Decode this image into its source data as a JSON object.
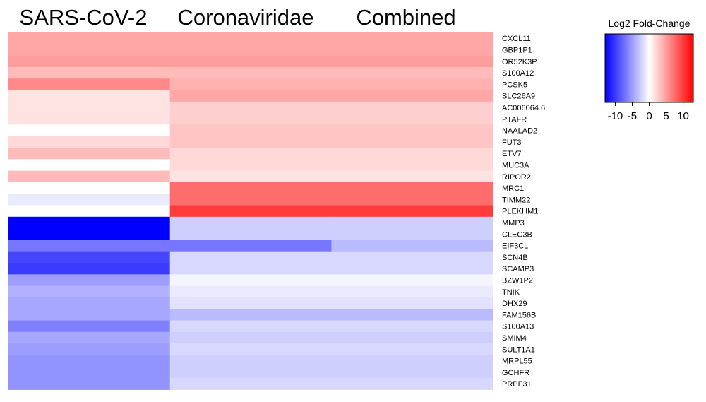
{
  "chart_data": {
    "type": "heatmap",
    "columns": [
      "SARS-CoV-2",
      "Coronaviridae",
      "Combined"
    ],
    "rows": [
      "CXCL11",
      "GBP1P1",
      "OR52K3P",
      "S100A12",
      "PCSK5",
      "SLC26A9",
      "AC006064.6",
      "PTAFR",
      "NAALAD2",
      "FUT3",
      "ETV7",
      "MUC3A",
      "RIPOR2",
      "MRC1",
      "TIMM22",
      "PLEKHM1",
      "MMP3",
      "CLEC3B",
      "EIF3CL",
      "SCN4B",
      "SCAMP3",
      "BZW1P2",
      "TNIK",
      "DHX29",
      "FAM156B",
      "S100A13",
      "SMIM4",
      "SULT1A1",
      "MRPL55",
      "GCHFR",
      "PRPF31"
    ],
    "values": [
      [
        4.5,
        4.5,
        4.5
      ],
      [
        4.5,
        4.5,
        4.5
      ],
      [
        5,
        5,
        5
      ],
      [
        3.5,
        3.5,
        3.5
      ],
      [
        6,
        4,
        4
      ],
      [
        1.5,
        4.5,
        4.5
      ],
      [
        1.5,
        2.5,
        2.5
      ],
      [
        1.5,
        2.5,
        2.5
      ],
      [
        0,
        3,
        3
      ],
      [
        2,
        3,
        3
      ],
      [
        3.5,
        2,
        2
      ],
      [
        0,
        2,
        2
      ],
      [
        3.5,
        1.5,
        1.5
      ],
      [
        0,
        7.5,
        7.5
      ],
      [
        -1,
        7.5,
        7.5
      ],
      [
        0,
        10,
        10
      ],
      [
        -13,
        -2.5,
        -2.5
      ],
      [
        -13,
        -2.5,
        -2.5
      ],
      [
        -7,
        -7,
        -3.5
      ],
      [
        -9.5,
        -2,
        -2
      ],
      [
        -10,
        -2,
        -2
      ],
      [
        -5,
        -0.5,
        -0.5
      ],
      [
        -4,
        -1,
        -1
      ],
      [
        -4.5,
        -1.5,
        -1.5
      ],
      [
        -4.5,
        -3.5,
        -3.5
      ],
      [
        -6.5,
        -2,
        -2
      ],
      [
        -4.5,
        -2.5,
        -2.5
      ],
      [
        -5,
        -2,
        -2
      ],
      [
        -5.5,
        -2.5,
        -2.5
      ],
      [
        -5.5,
        -2.5,
        -2.5
      ],
      [
        -5.5,
        -2,
        -2
      ]
    ],
    "colorscale": {
      "low": "#0000ff",
      "mid": "#ffffff",
      "high": "#ff0000",
      "min": -13,
      "max": 13
    },
    "legend": {
      "title": "Log2 Fold-Change",
      "ticks": [
        -10,
        -5,
        0,
        5,
        10
      ],
      "tick_labels": [
        "-10",
        "-5",
        "0",
        "5",
        "10"
      ],
      "placement": "top-right"
    }
  }
}
